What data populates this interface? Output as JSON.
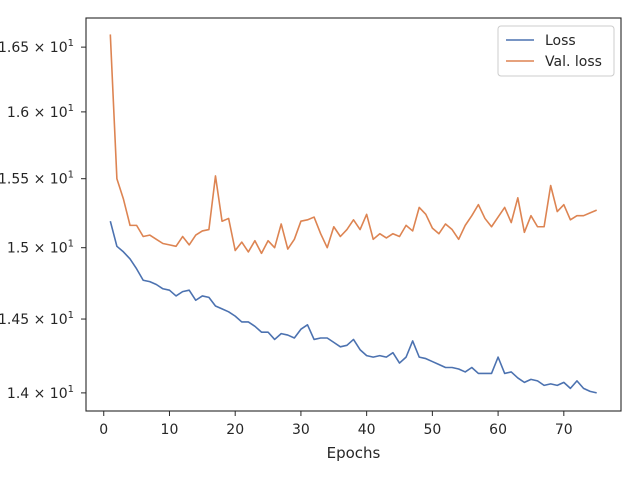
{
  "chart_data": {
    "type": "line",
    "title": "",
    "xlabel": "Epochs",
    "ylabel": "",
    "xlim": [
      -2.7,
      78.7
    ],
    "ylim": [
      13.88,
      16.73
    ],
    "y_scale": "log",
    "grid": false,
    "legend_position": "top-right",
    "x_ticks": [
      0,
      10,
      20,
      30,
      40,
      50,
      60,
      70
    ],
    "x_tick_labels": [
      "0",
      "10",
      "20",
      "30",
      "40",
      "50",
      "60",
      "70"
    ],
    "y_ticks": [
      14.0,
      14.5,
      15.0,
      15.5,
      16.0,
      16.5
    ],
    "y_tick_mantissas": [
      "1.4",
      "1.45",
      "1.5",
      "1.55",
      "1.6",
      "1.65"
    ],
    "y_tick_base": "10",
    "y_tick_exponent": "1",
    "colors": {
      "Loss": "#4c72b0",
      "Val. loss": "#dd8452"
    },
    "series": [
      {
        "name": "Loss",
        "x": [
          1,
          2,
          3,
          4,
          5,
          6,
          7,
          8,
          9,
          10,
          11,
          12,
          13,
          14,
          15,
          16,
          17,
          18,
          19,
          20,
          21,
          22,
          23,
          24,
          25,
          26,
          27,
          28,
          29,
          30,
          31,
          32,
          33,
          34,
          35,
          36,
          37,
          38,
          39,
          40,
          41,
          42,
          43,
          44,
          45,
          46,
          47,
          48,
          49,
          50,
          51,
          52,
          53,
          54,
          55,
          56,
          57,
          58,
          59,
          60,
          61,
          62,
          63,
          64,
          65,
          66,
          67,
          68,
          69,
          70,
          71,
          72,
          73,
          74,
          75
        ],
        "values": [
          15.19,
          15.01,
          14.97,
          14.92,
          14.85,
          14.77,
          14.76,
          14.74,
          14.71,
          14.7,
          14.66,
          14.69,
          14.7,
          14.63,
          14.66,
          14.65,
          14.59,
          14.57,
          14.55,
          14.52,
          14.48,
          14.48,
          14.45,
          14.41,
          14.41,
          14.36,
          14.4,
          14.39,
          14.37,
          14.43,
          14.46,
          14.36,
          14.37,
          14.37,
          14.34,
          14.31,
          14.32,
          14.36,
          14.29,
          14.25,
          14.24,
          14.25,
          14.24,
          14.27,
          14.2,
          14.24,
          14.35,
          14.24,
          14.23,
          14.21,
          14.19,
          14.17,
          14.17,
          14.16,
          14.14,
          14.17,
          14.13,
          14.13,
          14.13,
          14.24,
          14.13,
          14.14,
          14.1,
          14.07,
          14.09,
          14.08,
          14.05,
          14.06,
          14.05,
          14.07,
          14.03,
          14.08,
          14.03,
          14.01,
          14.0
        ]
      },
      {
        "name": "Val. loss",
        "x": [
          1,
          2,
          3,
          4,
          5,
          6,
          7,
          8,
          9,
          10,
          11,
          12,
          13,
          14,
          15,
          16,
          17,
          18,
          19,
          20,
          21,
          22,
          23,
          24,
          25,
          26,
          27,
          28,
          29,
          30,
          31,
          32,
          33,
          34,
          35,
          36,
          37,
          38,
          39,
          40,
          41,
          42,
          43,
          44,
          45,
          46,
          47,
          48,
          49,
          50,
          51,
          52,
          53,
          54,
          55,
          56,
          57,
          58,
          59,
          60,
          61,
          62,
          63,
          64,
          65,
          66,
          67,
          68,
          69,
          70,
          71,
          72,
          73,
          74,
          75
        ],
        "values": [
          16.6,
          15.5,
          15.35,
          15.16,
          15.16,
          15.08,
          15.09,
          15.06,
          15.03,
          15.02,
          15.01,
          15.08,
          15.02,
          15.09,
          15.12,
          15.13,
          15.52,
          15.19,
          15.21,
          14.98,
          15.04,
          14.97,
          15.05,
          14.96,
          15.05,
          15.0,
          15.17,
          14.99,
          15.06,
          15.19,
          15.2,
          15.22,
          15.1,
          15.0,
          15.15,
          15.08,
          15.13,
          15.2,
          15.13,
          15.24,
          15.06,
          15.1,
          15.07,
          15.1,
          15.08,
          15.16,
          15.12,
          15.29,
          15.24,
          15.14,
          15.1,
          15.17,
          15.13,
          15.06,
          15.16,
          15.23,
          15.31,
          15.21,
          15.15,
          15.22,
          15.29,
          15.18,
          15.36,
          15.11,
          15.23,
          15.15,
          15.15,
          15.45,
          15.26,
          15.31,
          15.2,
          15.23,
          15.23,
          15.25,
          15.27
        ]
      }
    ]
  }
}
